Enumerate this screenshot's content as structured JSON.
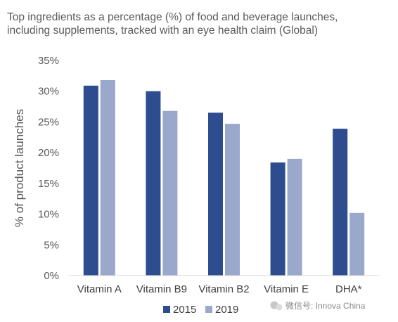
{
  "watermark": {
    "text": "微信号: Innova China",
    "icon": "wechat-icon"
  },
  "chart_data": {
    "type": "bar",
    "title": "Top ingredients as a percentage (%) of food and beverage launches, including supplements, tracked with an eye health claim (Global)",
    "title_lines": [
      "Top ingredients as a percentage (%) of food and beverage launches,",
      "including supplements, tracked with an eye health claim (Global)"
    ],
    "xlabel": "",
    "ylabel": "% of product launches",
    "ylim": [
      0,
      35
    ],
    "y_ticks": [
      0,
      5,
      10,
      15,
      20,
      25,
      30,
      35
    ],
    "y_tick_labels": [
      "0%",
      "5%",
      "10%",
      "15%",
      "20%",
      "25%",
      "30%",
      "35%"
    ],
    "grid": false,
    "legend_position": "bottom",
    "categories": [
      "Vitamin A",
      "Vitamin B9",
      "Vitamin B2",
      "Vitamin E",
      "DHA*"
    ],
    "series": [
      {
        "name": "2015",
        "color": "#2e4d8f",
        "values": [
          30.9,
          30.0,
          26.5,
          18.4,
          23.9
        ]
      },
      {
        "name": "2019",
        "color": "#9aa8cc",
        "values": [
          31.8,
          26.8,
          24.7,
          19.0,
          10.2
        ]
      }
    ]
  }
}
